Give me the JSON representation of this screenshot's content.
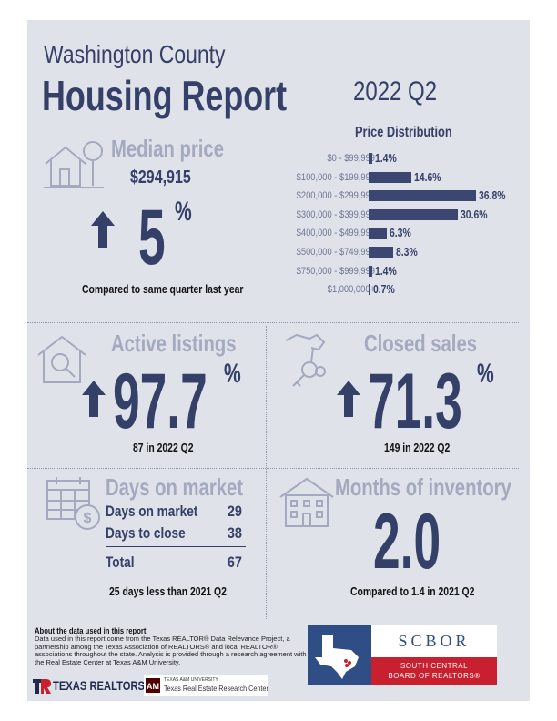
{
  "header": {
    "county": "Washington County",
    "title": "Housing Report",
    "quarter": "2022 Q2"
  },
  "median_price": {
    "title": "Median price",
    "value": "$294,915",
    "change": "5",
    "change_unit": "%",
    "direction": "up",
    "note": "Compared to same quarter last year"
  },
  "chart_data": {
    "type": "bar",
    "orientation": "horizontal",
    "title": "Price Distribution",
    "categories": [
      "$0 - $99,999",
      "$100,000 - $199,999",
      "$200,000 - $299,999",
      "$300,000 - $399,999",
      "$400,000 - $499,999",
      "$500,000 - $749,999",
      "$750,000 - $999,999",
      "$1,000,000+"
    ],
    "values": [
      1.4,
      14.6,
      36.8,
      30.6,
      6.3,
      8.3,
      1.4,
      0.7
    ],
    "value_labels": [
      "1.4%",
      "14.6%",
      "36.8%",
      "30.6%",
      "6.3%",
      "8.3%",
      "1.4%",
      "0.7%"
    ],
    "xlim": [
      0,
      36.8
    ]
  },
  "active_listings": {
    "title": "Active listings",
    "change": "97.7",
    "change_unit": "%",
    "direction": "up",
    "note": "87 in 2022 Q2"
  },
  "closed_sales": {
    "title": "Closed sales",
    "change": "71.3",
    "change_unit": "%",
    "direction": "up",
    "note": "149 in 2022 Q2"
  },
  "days_on_market": {
    "title": "Days on market",
    "rows": [
      {
        "label": "Days on market",
        "value": "29"
      },
      {
        "label": "Days to close",
        "value": "38"
      }
    ],
    "total_label": "Total",
    "total_value": "67",
    "note": "25 days less than 2021 Q2"
  },
  "months_inventory": {
    "title": "Months of inventory",
    "value": "2.0",
    "note": "Compared to 1.4 in 2021 Q2"
  },
  "about": {
    "heading": "About the data used in this report",
    "text": "Data used in this report come from the Texas REALTOR® Data Relevance Project, a partnership among the Texas Association of REALTORS® and local REALTOR® associations throughout the state. Analysis is provided through a research agreement with the Real Estate Center at Texas A&M University."
  },
  "logos": {
    "texas_realtors": "TEXAS REALTORS",
    "tamu_small": "TEXAS A&M UNIVERSITY",
    "tamu_center": "Texas Real Estate Research Center",
    "scbor": "SCBOR",
    "scbor_line1": "SOUTH CENTRAL",
    "scbor_line2": "BOARD OF REALTORS®"
  },
  "colors": {
    "navy": "#344068",
    "muted": "#a3aac0",
    "panel": "#dfe2e9",
    "scbor_blue": "#2f4e86",
    "scbor_red": "#c8202f"
  }
}
